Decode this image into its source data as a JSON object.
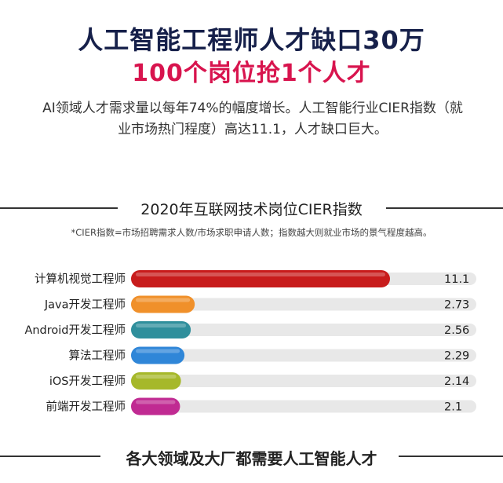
{
  "header": {
    "title": "人工智能工程师人才缺口30万",
    "subtitle": "100个岗位抢1个人才",
    "description_line1": "AI领域人才需求量以每年74%的幅度增长。人工智能行业CIER指数（就",
    "description_line2": "业市场热门程度）高达11.1，人才缺口巨大。"
  },
  "section1": {
    "title": "2020年互联网技术岗位CIER指数",
    "note": "*CIER指数=市场招聘需求人数/市场求职申请人数；指数越大则就业市场的景气程度越高。"
  },
  "section2": {
    "title": "各大领域及大厂都需要人工智能人才"
  },
  "chart_data": {
    "type": "bar",
    "orientation": "horizontal",
    "title": "2020年互联网技术岗位CIER指数",
    "categories": [
      "计算机视觉工程师",
      "Java开发工程师",
      "Android开发工程师",
      "算法工程师",
      "iOS开发工程师",
      "前端开发工程师"
    ],
    "values": [
      11.1,
      2.73,
      2.56,
      2.29,
      2.14,
      2.1
    ],
    "value_labels": [
      "11.1",
      "2.73",
      "2.56",
      "2.29",
      "2.14",
      "2.1"
    ],
    "bar_colors": [
      "#c81c1c",
      "#f0902a",
      "#2f8f9c",
      "#2f86d8",
      "#a6b82a",
      "#c02a92"
    ],
    "track_color": "#e8e8e8",
    "xlim": [
      0,
      14.8
    ],
    "grid": false,
    "legend": "none"
  }
}
